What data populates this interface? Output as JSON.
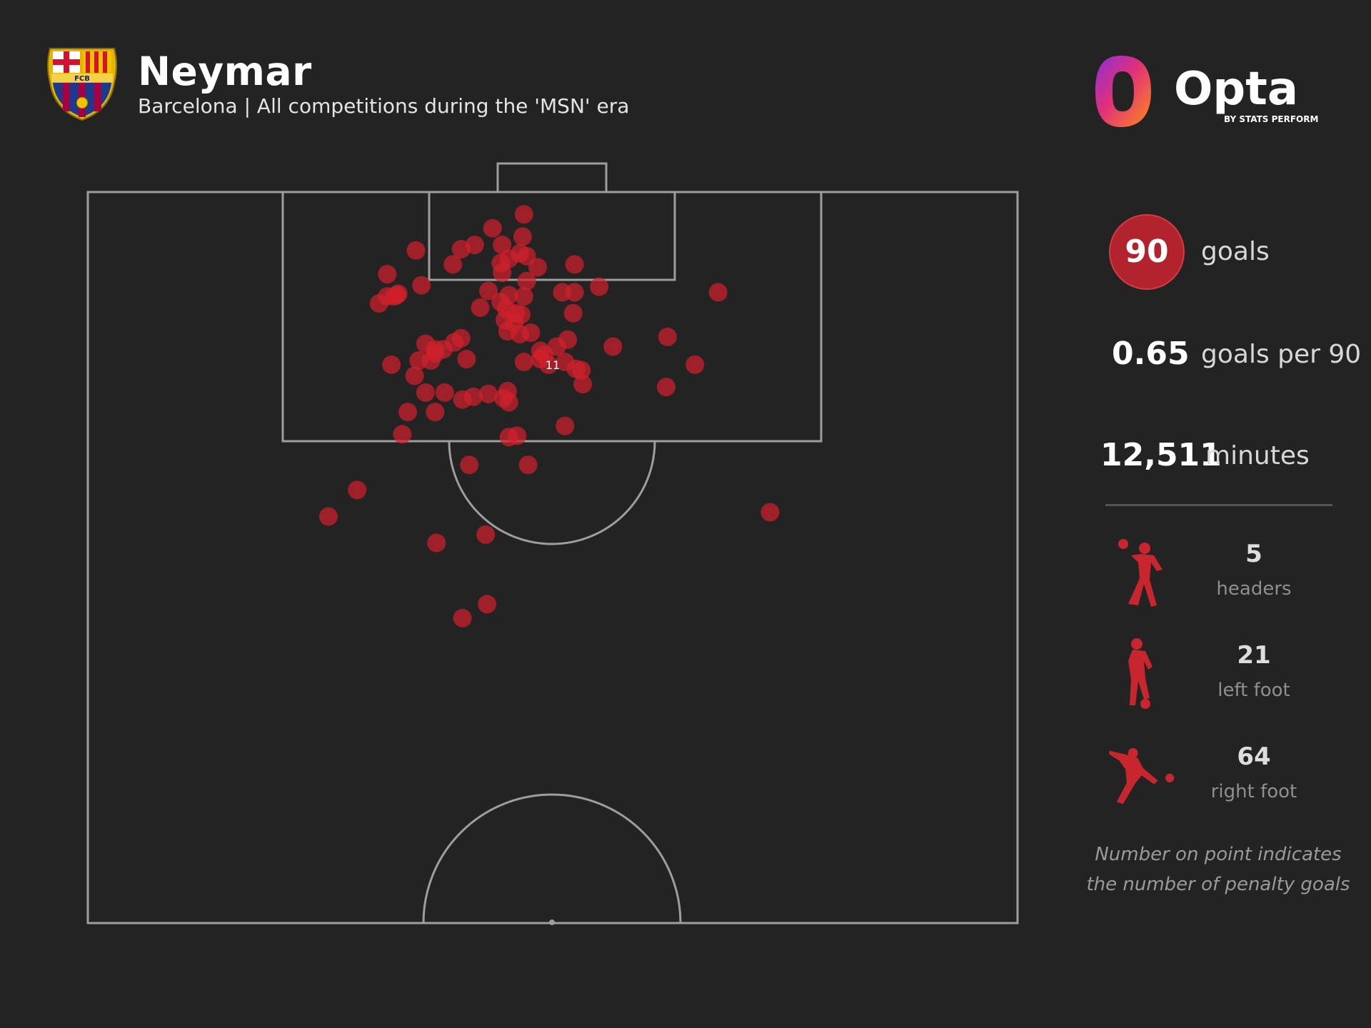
{
  "header": {
    "title": "Neymar",
    "subtitle": "Barcelona | All competitions during the 'MSN' era",
    "crest_text": "FCB",
    "brand": "Opta",
    "brand_sub": "BY STATS PERFORM"
  },
  "stats": {
    "goals": {
      "value": "90",
      "label": "goals"
    },
    "goals_per_90": {
      "value": "0.65",
      "label": "goals per 90"
    },
    "minutes": {
      "value": "12,511",
      "label": "minutes"
    }
  },
  "body_parts": [
    {
      "value": "5",
      "label": "headers",
      "icon": "header-icon"
    },
    {
      "value": "21",
      "label": "left foot",
      "icon": "left-foot-icon"
    },
    {
      "value": "64",
      "label": "right foot",
      "icon": "right-foot-icon"
    }
  ],
  "footnote": {
    "line1": "Number on point indicates",
    "line2": "the number of penalty goals"
  },
  "colors": {
    "background": "#232323",
    "accent": "#d0202b",
    "goal_circle": "#b3232d",
    "pitch_lines": "#9e9e9e"
  },
  "chart_data": {
    "type": "scatter",
    "description_units": "shot locations in metres: x across pitch width (0-68, left touchline = 0), y distance from goal line (0-52.5, halfway line = 52.5)",
    "xlim": [
      0,
      68
    ],
    "ylim": [
      0,
      52.5
    ],
    "series": [
      {
        "name": "goals",
        "points": [
          [
            31.9,
            1.6
          ],
          [
            29.6,
            2.6
          ],
          [
            31.8,
            3.2
          ],
          [
            30.3,
            3.8
          ],
          [
            31.6,
            4.4
          ],
          [
            32.1,
            4.6
          ],
          [
            30.8,
            4.8
          ],
          [
            30.2,
            5.1
          ],
          [
            28.3,
            3.8
          ],
          [
            27.3,
            4.1
          ],
          [
            32.9,
            5.4
          ],
          [
            35.6,
            5.2
          ],
          [
            24.0,
            4.2
          ],
          [
            26.7,
            5.2
          ],
          [
            30.3,
            5.8
          ],
          [
            32.1,
            6.4
          ],
          [
            35.6,
            7.2
          ],
          [
            30.8,
            7.4
          ],
          [
            31.9,
            7.5
          ],
          [
            30.2,
            7.9
          ],
          [
            29.3,
            7.1
          ],
          [
            36.1,
            12.8
          ],
          [
            24.4,
            6.7
          ],
          [
            22.7,
            7.3
          ],
          [
            22.6,
            7.4
          ],
          [
            28.7,
            8.3
          ],
          [
            31.3,
            8.7
          ],
          [
            30.6,
            8.4
          ],
          [
            31.7,
            8.8
          ],
          [
            30.5,
            9.2
          ],
          [
            31.2,
            9.4
          ],
          [
            35.5,
            8.7
          ],
          [
            22.4,
            7.5
          ],
          [
            30.7,
            10.0
          ],
          [
            31.6,
            10.2
          ],
          [
            32.4,
            10.1
          ],
          [
            35.1,
            10.6
          ],
          [
            34.3,
            11.1
          ],
          [
            33.4,
            11.7
          ],
          [
            26.8,
            10.8
          ],
          [
            27.3,
            10.5
          ],
          [
            25.4,
            11.6
          ],
          [
            24.7,
            10.9
          ],
          [
            25.4,
            11.3
          ],
          [
            26.0,
            11.3
          ],
          [
            25.1,
            12.1
          ],
          [
            24.2,
            12.1
          ],
          [
            23.9,
            13.2
          ],
          [
            27.7,
            12.0
          ],
          [
            24.7,
            14.4
          ],
          [
            26.1,
            14.4
          ],
          [
            28.2,
            14.7
          ],
          [
            29.3,
            14.5
          ],
          [
            30.7,
            14.3
          ],
          [
            30.4,
            14.8
          ],
          [
            30.8,
            15.1
          ],
          [
            27.4,
            14.9
          ],
          [
            31.9,
            12.2
          ],
          [
            33.1,
            12.0
          ],
          [
            33.1,
            11.4
          ],
          [
            34.9,
            12.2
          ],
          [
            35.7,
            12.7
          ],
          [
            36.2,
            13.8
          ],
          [
            23.4,
            15.8
          ],
          [
            25.4,
            15.8
          ],
          [
            23.0,
            17.4
          ],
          [
            30.8,
            17.6
          ],
          [
            31.4,
            17.5
          ],
          [
            34.9,
            16.8
          ],
          [
            27.9,
            19.6
          ],
          [
            32.2,
            19.6
          ],
          [
            38.4,
            11.1
          ],
          [
            42.4,
            10.4
          ],
          [
            42.3,
            14.0
          ],
          [
            44.4,
            12.4
          ],
          [
            46.1,
            7.2
          ],
          [
            34.7,
            7.2
          ],
          [
            37.4,
            6.8
          ],
          [
            21.9,
            5.9
          ],
          [
            21.9,
            7.5
          ],
          [
            21.3,
            8.0
          ],
          [
            22.2,
            12.4
          ],
          [
            49.9,
            23.0
          ],
          [
            17.6,
            23.3
          ],
          [
            19.7,
            21.4
          ],
          [
            25.5,
            25.2
          ],
          [
            29.1,
            24.6
          ],
          [
            29.2,
            29.6
          ],
          [
            27.4,
            30.6
          ],
          [
            33.7,
            12.4
          ]
        ],
        "penalty_label": {
          "x": 34,
          "y": 12.4,
          "text": "11"
        }
      }
    ]
  }
}
